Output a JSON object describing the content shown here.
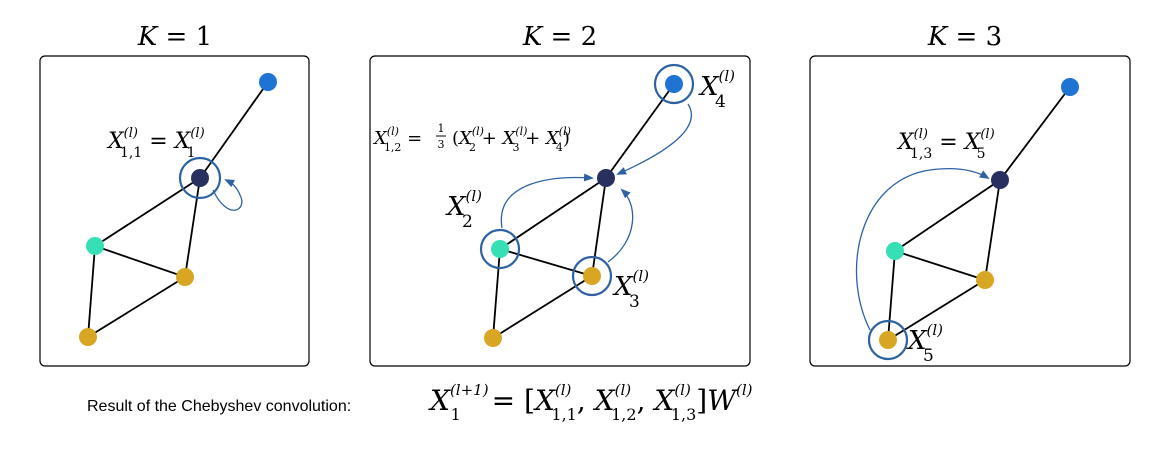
{
  "colors": {
    "target_node": "#27305e",
    "top_node": "#1f73d2",
    "cyan_node": "#36e0b4",
    "gold_node": "#d9a623",
    "ring": "#2e62a3",
    "arrow": "#2e62a3"
  },
  "panels": [
    {
      "title_var": "K",
      "title_eq": " = 1",
      "label_lhs_main": "X",
      "label_lhs_sup": "(l)",
      "label_lhs_sub": "1,1",
      "label_eq": " = ",
      "label_rhs_main": "X",
      "label_rhs_sup": "(l)",
      "label_rhs_sub": "1"
    },
    {
      "title_var": "K",
      "title_eq": " = 2",
      "label_lhs_main": "X",
      "label_lhs_sup": "(l)",
      "label_lhs_sub": "1,2",
      "label_eq": " = ",
      "frac_num": "1",
      "frac_den": "3",
      "sum_open": "(",
      "term_main": "X",
      "term_sup": "(l)",
      "sum_subs": [
        "2",
        "3",
        "4"
      ],
      "plus": " + ",
      "sum_close": ")",
      "node_labels": [
        {
          "main": "X",
          "sup": "(l)",
          "sub": "4"
        },
        {
          "main": "X",
          "sup": "(l)",
          "sub": "2"
        },
        {
          "main": "X",
          "sup": "(l)",
          "sub": "3"
        }
      ]
    },
    {
      "title_var": "K",
      "title_eq": " = 3",
      "label_lhs_main": "X",
      "label_lhs_sup": "(l)",
      "label_lhs_sub": "1,3",
      "label_eq": " = ",
      "label_rhs_main": "X",
      "label_rhs_sup": "(l)",
      "label_rhs_sub": "5",
      "node_label": {
        "main": "X",
        "sup": "(l)",
        "sub": "5"
      }
    }
  ],
  "result": {
    "caption": "Result of the Chebyshev convolution:",
    "lhs_main": "X",
    "lhs_sup": "(l+1)",
    "lhs_sub": "1",
    "eq": " = [",
    "terms": [
      {
        "main": "X",
        "sup": "(l)",
        "sub": "1,1"
      },
      {
        "main": "X",
        "sup": "(l)",
        "sub": "1,2"
      },
      {
        "main": "X",
        "sup": "(l)",
        "sub": "1,3"
      }
    ],
    "comma": ", ",
    "close": "]",
    "w_main": "W",
    "w_sup": "(l)"
  }
}
